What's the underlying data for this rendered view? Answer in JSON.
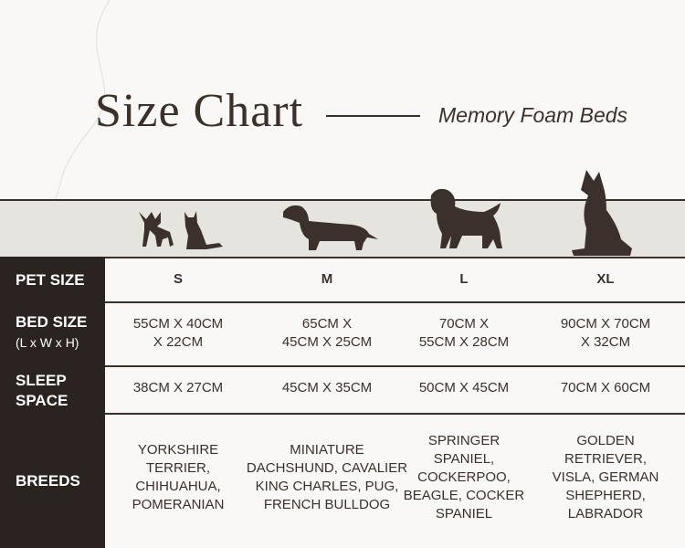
{
  "header": {
    "title": "Size Chart",
    "subtitle": "Memory Foam Beds"
  },
  "table": {
    "columns": [
      "S",
      "M",
      "L",
      "XL"
    ],
    "row_headers": [
      {
        "lines": [
          "PET SIZE"
        ]
      },
      {
        "lines": [
          "BED SIZE"
        ],
        "sublabel": "(L x W x H)"
      },
      {
        "lines": [
          "SLEEP",
          "SPACE"
        ]
      },
      {
        "lines": [
          "BREEDS"
        ]
      }
    ],
    "bed_size": [
      [
        "55CM X 40CM",
        "X 22CM"
      ],
      [
        "65CM X",
        "45CM X 25CM"
      ],
      [
        "70CM X",
        "55CM X 28CM"
      ],
      [
        "90CM X 70CM",
        "X 32CM"
      ]
    ],
    "sleep_space": [
      "38CM X 27CM",
      "45CM X 35CM",
      "50CM X 45CM",
      "70CM X 60CM"
    ],
    "breeds": [
      [
        "YORKSHIRE",
        "TERRIER,",
        "CHIHUAHUA,",
        "POMERANIAN"
      ],
      [
        "MINIATURE",
        "DACHSHUND, CAVALIER",
        "KING CHARLES, PUG,",
        "FRENCH BULLDOG"
      ],
      [
        "SPRINGER",
        "SPANIEL,",
        "COCKERPOO,",
        "BEAGLE, COCKER",
        "SPANIEL"
      ],
      [
        "GOLDEN",
        "RETRIEVER,",
        "VISLA, GERMAN",
        "SHEPHERD,",
        "LABRADOR"
      ]
    ]
  }
}
